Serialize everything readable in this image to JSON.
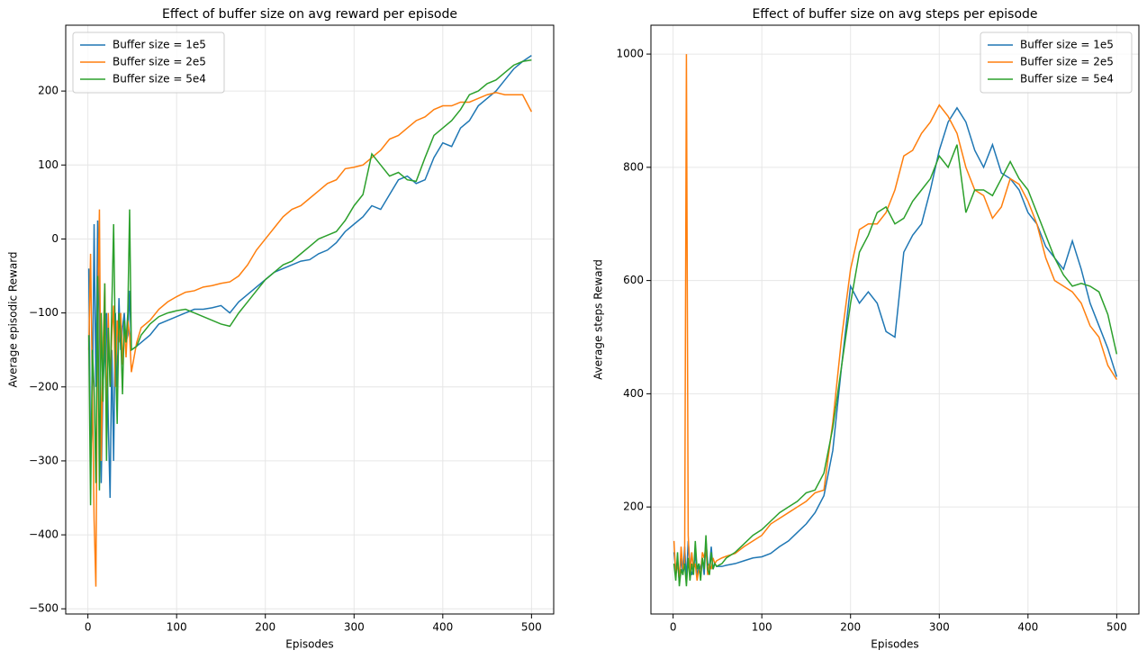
{
  "chart_data": [
    {
      "type": "line",
      "title": "Effect of buffer size on avg reward per episode",
      "xlabel": "Episodes",
      "ylabel": "Average episodic Reward",
      "x": [
        1,
        3,
        5,
        7,
        9,
        11,
        13,
        15,
        17,
        19,
        21,
        23,
        25,
        27,
        29,
        31,
        33,
        35,
        37,
        39,
        41,
        43,
        45,
        47,
        49,
        55,
        60,
        70,
        80,
        90,
        100,
        110,
        120,
        130,
        140,
        150,
        160,
        170,
        180,
        190,
        200,
        210,
        220,
        230,
        240,
        250,
        260,
        270,
        280,
        290,
        300,
        310,
        320,
        330,
        340,
        350,
        360,
        370,
        380,
        390,
        400,
        410,
        420,
        430,
        440,
        450,
        460,
        470,
        480,
        490,
        500
      ],
      "series": [
        {
          "name": "Buffer size = 1e5",
          "color": "#1f77b4",
          "values": [
            -40,
            -300,
            -230,
            20,
            -200,
            25,
            -100,
            -330,
            -200,
            -150,
            -100,
            -250,
            -350,
            -150,
            -300,
            -100,
            -200,
            -80,
            -150,
            -120,
            -100,
            -140,
            -130,
            -70,
            -150,
            -145,
            -140,
            -130,
            -115,
            -110,
            -105,
            -100,
            -95,
            -95,
            -93,
            -90,
            -100,
            -85,
            -75,
            -65,
            -55,
            -45,
            -40,
            -35,
            -30,
            -28,
            -20,
            -15,
            -5,
            10,
            20,
            30,
            45,
            40,
            60,
            80,
            85,
            75,
            80,
            110,
            130,
            125,
            150,
            160,
            180,
            190,
            200,
            215,
            230,
            240,
            248
          ]
        },
        {
          "name": "Buffer size = 2e5",
          "color": "#ff7f0e",
          "values": [
            -150,
            -20,
            -200,
            -380,
            -470,
            -100,
            40,
            -300,
            -150,
            -60,
            -250,
            -100,
            -200,
            -130,
            -90,
            -200,
            -110,
            -140,
            -100,
            -170,
            -120,
            -160,
            -110,
            -130,
            -180,
            -140,
            -120,
            -110,
            -95,
            -85,
            -78,
            -72,
            -70,
            -65,
            -63,
            -60,
            -58,
            -50,
            -35,
            -15,
            0,
            15,
            30,
            40,
            45,
            55,
            65,
            75,
            80,
            95,
            97,
            100,
            110,
            120,
            135,
            140,
            150,
            160,
            165,
            175,
            180,
            180,
            185,
            185,
            190,
            195,
            198,
            195,
            195,
            195,
            172
          ]
        },
        {
          "name": "Buffer size = 5e4",
          "color": "#2ca02c",
          "values": [
            -130,
            -360,
            -150,
            -200,
            -330,
            -50,
            -340,
            -100,
            -220,
            -60,
            -300,
            -120,
            -200,
            -90,
            20,
            -150,
            -250,
            -100,
            -130,
            -210,
            -110,
            -140,
            -100,
            40,
            -150,
            -145,
            -130,
            -115,
            -105,
            -100,
            -97,
            -95,
            -100,
            -105,
            -110,
            -115,
            -118,
            -100,
            -85,
            -70,
            -55,
            -45,
            -35,
            -30,
            -20,
            -10,
            0,
            5,
            10,
            25,
            45,
            60,
            115,
            100,
            85,
            90,
            80,
            78,
            110,
            140,
            150,
            160,
            175,
            195,
            200,
            210,
            215,
            225,
            235,
            240,
            242
          ]
        }
      ],
      "xlim": [
        -25,
        525
      ],
      "ylim": [
        -507,
        289
      ],
      "xticks": [
        0,
        100,
        200,
        300,
        400,
        500
      ],
      "yticks": [
        {
          "value": -500,
          "label": "−500"
        },
        {
          "value": -400,
          "label": "−400"
        },
        {
          "value": -300,
          "label": "−300"
        },
        {
          "value": -200,
          "label": "−200"
        },
        {
          "value": -100,
          "label": "−100"
        },
        0,
        100,
        200
      ],
      "grid": true,
      "legend": "upper left"
    },
    {
      "type": "line",
      "title": "Effect of buffer size on avg steps per episode",
      "xlabel": "Episodes",
      "ylabel": "Average steps Reward",
      "x": [
        1,
        3,
        5,
        7,
        9,
        11,
        13,
        15,
        17,
        19,
        21,
        23,
        25,
        27,
        29,
        31,
        33,
        35,
        37,
        39,
        41,
        43,
        45,
        47,
        49,
        55,
        60,
        70,
        80,
        90,
        100,
        110,
        120,
        130,
        140,
        150,
        160,
        170,
        180,
        190,
        200,
        210,
        220,
        230,
        240,
        250,
        260,
        270,
        280,
        290,
        300,
        310,
        320,
        330,
        340,
        350,
        360,
        370,
        380,
        390,
        400,
        410,
        420,
        430,
        440,
        450,
        460,
        470,
        480,
        490,
        500
      ],
      "series": [
        {
          "name": "Buffer size = 1e5",
          "color": "#1f77b4",
          "values": [
            120,
            90,
            100,
            70,
            110,
            80,
            130,
            70,
            140,
            100,
            80,
            90,
            120,
            75,
            100,
            90,
            110,
            80,
            140,
            100,
            95,
            130,
            90,
            100,
            95,
            95,
            97,
            100,
            105,
            110,
            112,
            118,
            130,
            140,
            155,
            170,
            190,
            220,
            300,
            450,
            590,
            560,
            580,
            560,
            510,
            500,
            650,
            680,
            700,
            760,
            830,
            880,
            905,
            880,
            830,
            800,
            840,
            790,
            780,
            760,
            720,
            700,
            660,
            640,
            620,
            670,
            620,
            560,
            520,
            480,
            430
          ]
        },
        {
          "name": "Buffer size = 2e5",
          "color": "#ff7f0e",
          "values": [
            140,
            80,
            100,
            70,
            130,
            90,
            100,
            1000,
            150,
            80,
            120,
            90,
            100,
            70,
            90,
            80,
            120,
            110,
            130,
            80,
            100,
            90,
            110,
            100,
            105,
            110,
            113,
            118,
            130,
            140,
            150,
            170,
            180,
            190,
            200,
            210,
            225,
            230,
            350,
            500,
            620,
            690,
            700,
            700,
            720,
            760,
            820,
            830,
            860,
            880,
            910,
            890,
            860,
            800,
            760,
            750,
            710,
            730,
            780,
            770,
            740,
            700,
            640,
            600,
            590,
            580,
            560,
            520,
            500,
            450,
            425
          ]
        },
        {
          "name": "Buffer size = 5e4",
          "color": "#2ca02c",
          "values": [
            100,
            70,
            120,
            60,
            90,
            80,
            100,
            60,
            110,
            70,
            100,
            80,
            140,
            90,
            100,
            70,
            110,
            90,
            150,
            90,
            80,
            120,
            90,
            100,
            95,
            100,
            110,
            120,
            135,
            150,
            160,
            175,
            190,
            200,
            210,
            225,
            230,
            260,
            340,
            450,
            560,
            650,
            680,
            720,
            730,
            700,
            710,
            740,
            760,
            780,
            820,
            800,
            840,
            720,
            760,
            760,
            750,
            780,
            810,
            780,
            760,
            720,
            680,
            640,
            610,
            590,
            595,
            590,
            580,
            540,
            470
          ]
        }
      ],
      "xlim": [
        -25,
        525
      ],
      "ylim": [
        11,
        1051
      ],
      "xticks": [
        0,
        100,
        200,
        300,
        400,
        500
      ],
      "yticks": [
        200,
        400,
        600,
        800,
        1000
      ],
      "grid": true,
      "legend": "upper right"
    }
  ]
}
